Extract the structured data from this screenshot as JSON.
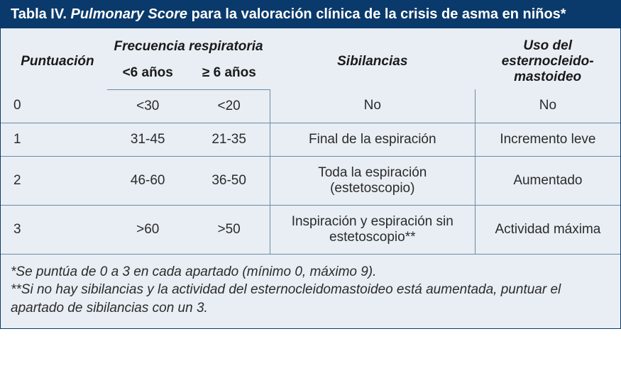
{
  "colors": {
    "header_bg": "#0a3a6b",
    "header_fg": "#ffffff",
    "body_bg": "#e8eef4",
    "rule": "#6f8aa3",
    "text": "#2b2b2b"
  },
  "title": {
    "label": "Tabla IV.",
    "italic": "Pulmonary Score",
    "rest": " para la valoración clínica de la crisis de asma en niños*"
  },
  "headers": {
    "puntuacion": "Puntuación",
    "frecuencia": "Frecuencia respiratoria",
    "sibilancias": "Sibilancias",
    "esternocleido": "Uso del esternocleido-mastoideo",
    "sub_lt6": "<6 años",
    "sub_ge6": "≥ 6 años"
  },
  "rows": [
    {
      "punt": "0",
      "lt6": "<30",
      "ge6": "<20",
      "sib": "No",
      "est": "No"
    },
    {
      "punt": "1",
      "lt6": "31-45",
      "ge6": "21-35",
      "sib": "Final de la espiración",
      "est": "Incremento leve"
    },
    {
      "punt": "2",
      "lt6": "46-60",
      "ge6": "36-50",
      "sib": "Toda la espiración (estetoscopio)",
      "est": "Aumentado"
    },
    {
      "punt": "3",
      "lt6": ">60",
      "ge6": ">50",
      "sib": "Inspiración y espiración sin estetoscopio**",
      "est": "Actividad máxima"
    }
  ],
  "footnotes": {
    "f1": "*Se puntúa de 0 a 3 en cada apartado (mínimo 0, máximo 9).",
    "f2": "**Si no hay sibilancias y la actividad del esternocleidomastoideo está aumentada, puntuar el apartado de sibilancias con un 3."
  }
}
